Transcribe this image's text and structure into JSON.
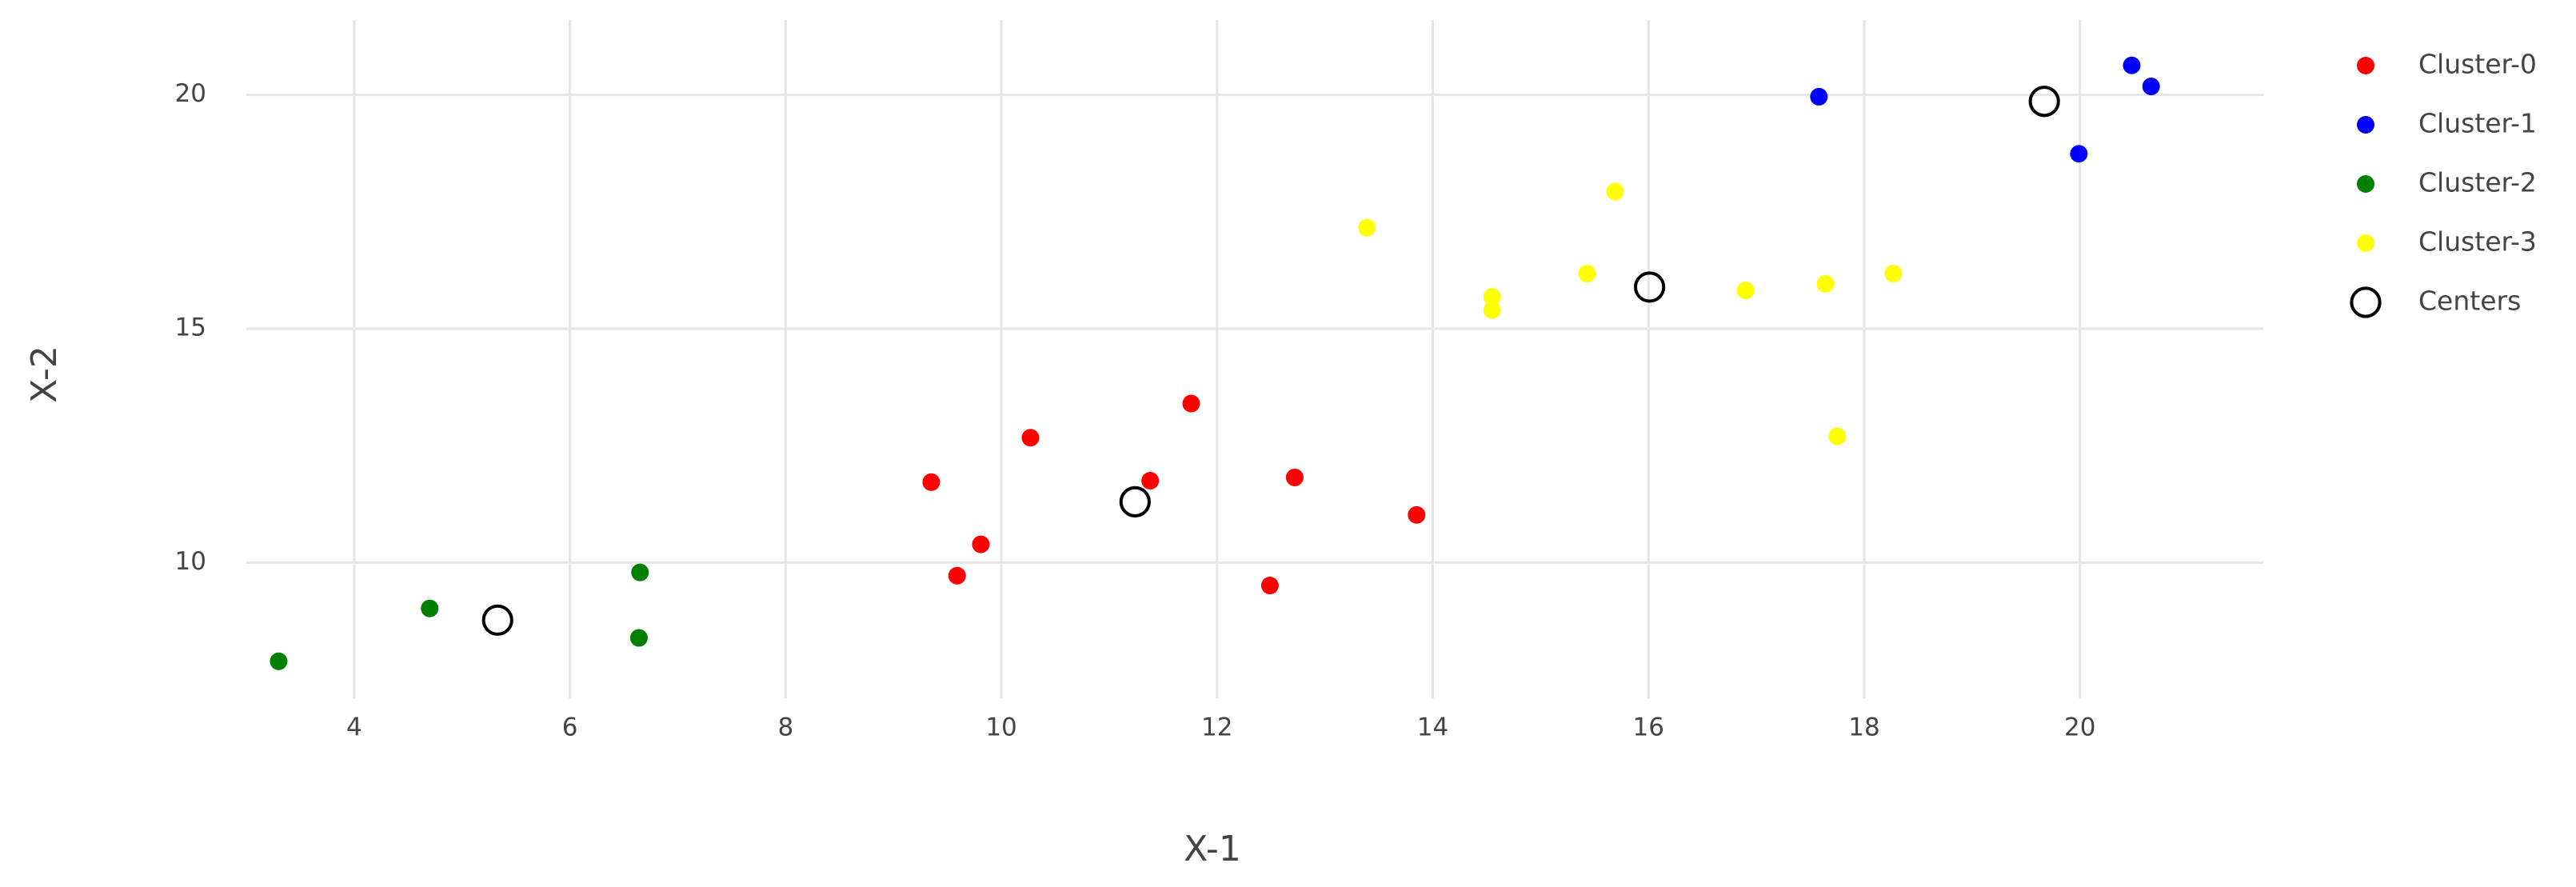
{
  "chart_data": {
    "type": "scatter",
    "x_label": "X-1",
    "y_label": "X-2",
    "xlim": [
      3.0,
      21.7
    ],
    "ylim": [
      7.1,
      21.6
    ],
    "xticks": [
      4,
      6,
      8,
      10,
      12,
      14,
      16,
      18,
      20
    ],
    "yticks": [
      10,
      15,
      20
    ],
    "grid": true,
    "legend": "right",
    "series": [
      {
        "name": "Cluster-0",
        "color": "#ff0000",
        "symbol": "filled-circle",
        "x": [
          9.35,
          9.59,
          9.81,
          10.27,
          11.38,
          11.76,
          12.72,
          12.49,
          13.85
        ],
        "values": [
          11.72,
          9.72,
          10.39,
          12.67,
          11.75,
          13.4,
          11.82,
          9.51,
          11.02
        ]
      },
      {
        "name": "Cluster-1",
        "color": "#0000ff",
        "symbol": "filled-circle",
        "x": [
          17.58,
          19.99,
          20.48,
          20.66
        ],
        "values": [
          19.96,
          18.74,
          20.63,
          20.18
        ]
      },
      {
        "name": "Cluster-2",
        "color": "#008000",
        "symbol": "filled-circle",
        "x": [
          3.3,
          4.7,
          6.65,
          6.64
        ],
        "values": [
          7.89,
          9.02,
          9.79,
          8.39
        ]
      },
      {
        "name": "Cluster-3",
        "color": "#ffff00",
        "symbol": "filled-circle",
        "x": [
          13.39,
          14.55,
          14.55,
          15.43,
          15.69,
          16.9,
          17.64,
          18.27,
          17.75
        ],
        "values": [
          17.16,
          15.68,
          15.4,
          16.18,
          17.93,
          15.82,
          15.96,
          16.18,
          12.7
        ]
      },
      {
        "name": "Centers",
        "color": "#000000",
        "symbol": "open-circle",
        "x": [
          5.33,
          11.24,
          16.01,
          19.67
        ],
        "values": [
          8.77,
          11.3,
          15.89,
          19.86
        ]
      }
    ]
  }
}
